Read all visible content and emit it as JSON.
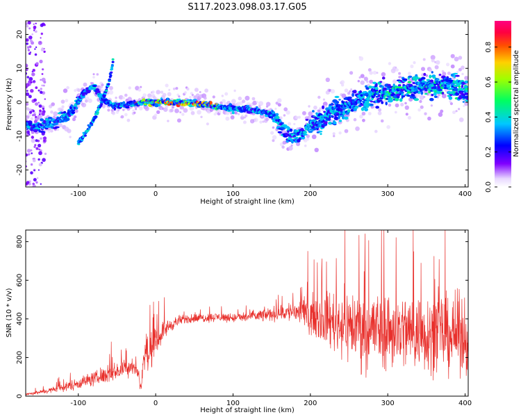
{
  "figure_title": "S117.2023.098.03.17.G05",
  "chart_data": [
    {
      "type": "heatmap",
      "xlabel": "Height of straight line (km)",
      "ylabel": "Frequency (Hz)",
      "xlim": [
        -168,
        404
      ],
      "ylim": [
        -25,
        24
      ],
      "xticks": [
        -100,
        0,
        100,
        200,
        300,
        400
      ],
      "yticks": [
        -20,
        -10,
        0,
        10,
        20
      ],
      "colorbar": {
        "label": "Normalized spectral amplitude",
        "range": [
          0.0,
          0.95
        ],
        "ticks": [
          "0.0",
          "0.2",
          "0.4",
          "0.6",
          "0.8"
        ],
        "tick_values": [
          0.0,
          0.2,
          0.4,
          0.6,
          0.8
        ]
      },
      "series": [
        {
          "name": "main ridge",
          "x": [
            -168,
            -150,
            -130,
            -110,
            -95,
            -80,
            -70,
            -55,
            -40,
            -20,
            0,
            20,
            40,
            60,
            80,
            100,
            120,
            140,
            150,
            160,
            170,
            180,
            190,
            200,
            210,
            220,
            230,
            240,
            250,
            260,
            280,
            300,
            320,
            340,
            360,
            380,
            400
          ],
          "y": [
            -7,
            -7,
            -6,
            -3,
            2,
            5,
            1,
            -1,
            -1,
            0,
            0,
            0,
            0,
            -0.5,
            -1.5,
            -2,
            -2,
            -3,
            -4,
            -6,
            -9,
            -10,
            -9,
            -7,
            -6,
            -4,
            -3,
            -2,
            -1,
            1,
            2,
            3,
            4,
            5,
            5,
            5,
            3
          ]
        },
        {
          "name": "rising branch",
          "x": [
            -100,
            -90,
            -80,
            -70,
            -60,
            -55
          ],
          "y": [
            -12,
            -9,
            -5,
            0,
            6,
            12
          ]
        },
        {
          "name": "left edge scatter",
          "x": [
            -165,
            -162,
            -160
          ],
          "y": [
            -20,
            10,
            22
          ]
        }
      ]
    },
    {
      "type": "line",
      "xlabel": "Height of straight line (km)",
      "ylabel": "SNR (10 * v/v)",
      "xlim": [
        -168,
        404
      ],
      "ylim": [
        0,
        860
      ],
      "xticks": [
        -100,
        0,
        100,
        200,
        300,
        400
      ],
      "yticks": [
        0,
        200,
        400,
        600,
        800
      ],
      "color": "#e8302c",
      "x": [
        -168,
        -150,
        -130,
        -110,
        -90,
        -70,
        -50,
        -30,
        -22,
        -20,
        -18,
        -15,
        -12,
        -10,
        -5,
        0,
        10,
        20,
        30,
        40,
        60,
        80,
        100,
        120,
        140,
        160,
        180,
        200,
        220,
        240,
        260,
        280,
        300,
        320,
        340,
        360,
        380,
        400
      ],
      "y": [
        10,
        20,
        35,
        55,
        80,
        100,
        130,
        160,
        120,
        50,
        60,
        220,
        250,
        200,
        240,
        280,
        340,
        370,
        390,
        400,
        405,
        410,
        405,
        410,
        420,
        430,
        440,
        420,
        400,
        380,
        360,
        350,
        340,
        340,
        330,
        330,
        320,
        320
      ],
      "noise_amplitude": [
        10,
        15,
        25,
        40,
        50,
        60,
        70,
        80,
        40,
        30,
        40,
        120,
        150,
        130,
        120,
        100,
        70,
        50,
        40,
        35,
        35,
        35,
        35,
        40,
        50,
        60,
        90,
        140,
        200,
        260,
        300,
        300,
        300,
        300,
        300,
        300,
        300,
        300
      ]
    }
  ]
}
